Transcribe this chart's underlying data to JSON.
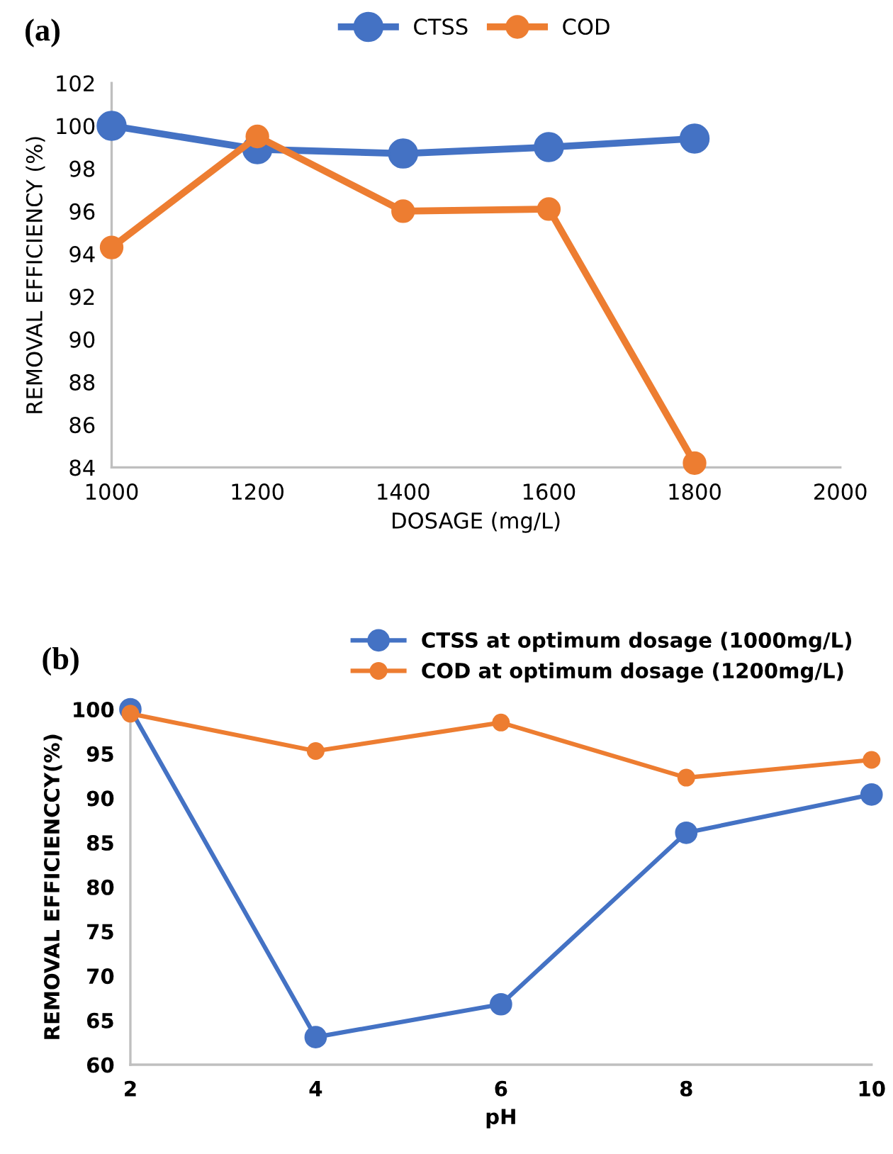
{
  "chart_data": [
    {
      "type": "line",
      "title": "(a)",
      "xlabel": "DOSAGE (mg/L)",
      "ylabel": "REMOVAL EFFICIENCY (%)",
      "x": [
        1000,
        1200,
        1400,
        1600,
        1800
      ],
      "xlim": [
        1000,
        2000
      ],
      "xticks": [
        1000,
        1200,
        1400,
        1600,
        1800,
        2000
      ],
      "ylim": [
        84,
        102
      ],
      "yticks": [
        84,
        86,
        88,
        90,
        92,
        94,
        96,
        98,
        100,
        102
      ],
      "grid": false,
      "legend": "top",
      "marker": "circle",
      "line_style": "solid",
      "series": [
        {
          "name": "CTSS",
          "color": "#4472c4",
          "values": [
            100.0,
            98.9,
            98.7,
            99.0,
            99.4
          ]
        },
        {
          "name": "COD",
          "color": "#ed7d31",
          "values": [
            94.3,
            99.5,
            96.0,
            96.1,
            84.2
          ]
        }
      ]
    },
    {
      "type": "line",
      "title": "(b)",
      "xlabel": "pH",
      "ylabel": "REMOVAL EFFICIENCCY(%)",
      "x": [
        2,
        4,
        6,
        8,
        10
      ],
      "xlim": [
        2,
        10
      ],
      "xticks": [
        2,
        4,
        6,
        8,
        10
      ],
      "ylim": [
        60,
        100
      ],
      "yticks": [
        60,
        65,
        70,
        75,
        80,
        85,
        90,
        95,
        100
      ],
      "grid": false,
      "legend": "top right",
      "marker": "circle",
      "line_style": "solid",
      "series": [
        {
          "name": "CTSS at optimum dosage (1000mg/L)",
          "color": "#4472c4",
          "values": [
            100.0,
            63.1,
            66.8,
            86.1,
            90.4
          ]
        },
        {
          "name": "COD at optimum dosage (1200mg/L)",
          "color": "#ed7d31",
          "values": [
            99.5,
            95.3,
            98.5,
            92.3,
            94.3
          ]
        }
      ]
    }
  ]
}
